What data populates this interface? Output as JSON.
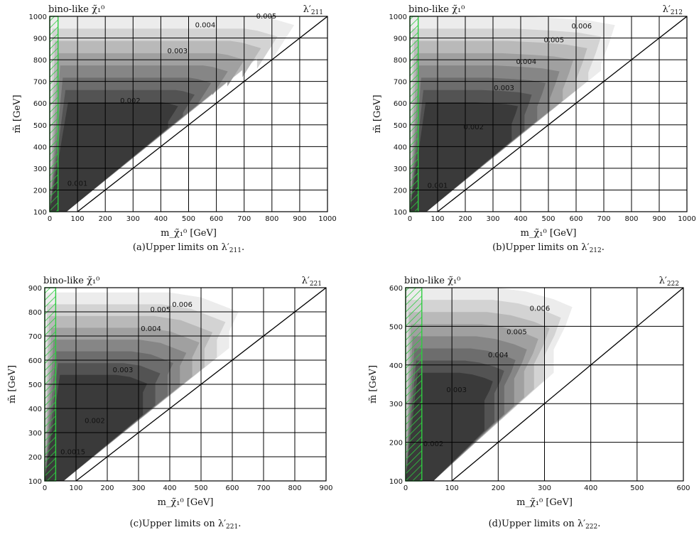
{
  "chart_data": [
    {
      "type": "heatmap",
      "panel": "(a)",
      "caption_prefix": "Upper limits on ",
      "caption_coupling": "λ′211",
      "corner_left": "bino-like χ̃₁⁰",
      "corner_right": "λ′211",
      "xlabel": "m_χ̃₁⁰ [GeV]",
      "ylabel": "m̃ [GeV]",
      "xlim": [
        0,
        1000
      ],
      "ylim": [
        100,
        1000
      ],
      "xticks": [
        0,
        100,
        200,
        300,
        400,
        500,
        600,
        700,
        800,
        900,
        1000
      ],
      "yticks": [
        100,
        200,
        300,
        400,
        500,
        600,
        700,
        800,
        900,
        1000
      ],
      "excluded_region_x_max": 30,
      "contour_labels": [
        {
          "text": "0.001",
          "x": 100,
          "y": 220
        },
        {
          "text": "0.002",
          "x": 290,
          "y": 600
        },
        {
          "text": "0.003",
          "x": 460,
          "y": 830
        },
        {
          "text": "0.004",
          "x": 560,
          "y": 950
        },
        {
          "text": "0.005",
          "x": 780,
          "y": 990
        }
      ],
      "envelope_top": [
        [
          0,
          1000
        ],
        [
          200,
          1000
        ],
        [
          400,
          1000
        ],
        [
          600,
          1000
        ],
        [
          750,
          1000
        ],
        [
          800,
          990
        ],
        [
          880,
          960
        ],
        [
          850,
          900
        ],
        [
          800,
          800
        ]
      ]
    },
    {
      "type": "heatmap",
      "panel": "(b)",
      "caption_prefix": "Upper limits on ",
      "caption_coupling": "λ′212",
      "corner_left": "bino-like χ̃₁⁰",
      "corner_right": "λ′212",
      "xlabel": "m_χ̃₁⁰ [GeV]",
      "ylabel": "m̃ [GeV]",
      "xlim": [
        0,
        1000
      ],
      "ylim": [
        100,
        1000
      ],
      "xticks": [
        0,
        100,
        200,
        300,
        400,
        500,
        600,
        700,
        800,
        900,
        1000
      ],
      "yticks": [
        100,
        200,
        300,
        400,
        500,
        600,
        700,
        800,
        900,
        1000
      ],
      "excluded_region_x_max": 30,
      "contour_labels": [
        {
          "text": "0.001",
          "x": 100,
          "y": 210
        },
        {
          "text": "0.002",
          "x": 230,
          "y": 480
        },
        {
          "text": "0.003",
          "x": 340,
          "y": 660
        },
        {
          "text": "0.004",
          "x": 420,
          "y": 780
        },
        {
          "text": "0.005",
          "x": 520,
          "y": 880
        },
        {
          "text": "0.006",
          "x": 620,
          "y": 945
        }
      ],
      "envelope_top": [
        [
          0,
          1000
        ],
        [
          200,
          1000
        ],
        [
          400,
          1000
        ],
        [
          550,
          990
        ],
        [
          650,
          980
        ],
        [
          740,
          960
        ],
        [
          720,
          880
        ],
        [
          690,
          780
        ]
      ]
    },
    {
      "type": "heatmap",
      "panel": "(c)",
      "caption_prefix": "Upper limits on ",
      "caption_coupling": "λ′221",
      "corner_left": "bino-like χ̃₁⁰",
      "corner_right": "λ′221",
      "xlabel": "m_χ̃₁⁰ [GeV]",
      "ylabel": "m̃ [GeV]",
      "xlim": [
        0,
        900
      ],
      "ylim": [
        100,
        900
      ],
      "xticks": [
        0,
        100,
        200,
        300,
        400,
        500,
        600,
        700,
        800,
        900
      ],
      "yticks": [
        100,
        200,
        300,
        400,
        500,
        600,
        700,
        800,
        900
      ],
      "excluded_region_x_max": 35,
      "contour_labels": [
        {
          "text": "0.0015",
          "x": 90,
          "y": 210
        },
        {
          "text": "0.002",
          "x": 160,
          "y": 340
        },
        {
          "text": "0.003",
          "x": 250,
          "y": 550
        },
        {
          "text": "0.004",
          "x": 340,
          "y": 720
        },
        {
          "text": "0.005",
          "x": 370,
          "y": 800
        },
        {
          "text": "0.006",
          "x": 440,
          "y": 820
        }
      ],
      "envelope_top": [
        [
          0,
          880
        ],
        [
          100,
          880
        ],
        [
          200,
          880
        ],
        [
          300,
          880
        ],
        [
          400,
          880
        ],
        [
          500,
          860
        ],
        [
          560,
          830
        ],
        [
          620,
          800
        ],
        [
          590,
          720
        ]
      ]
    },
    {
      "type": "heatmap",
      "panel": "(d)",
      "caption_prefix": "Upper limits on ",
      "caption_coupling": "λ′222",
      "corner_left": "bino-like χ̃₁⁰",
      "corner_right": "λ′222",
      "xlabel": "m_χ̃₁⁰ [GeV]",
      "ylabel": "m̃ [GeV]",
      "xlim": [
        0,
        600
      ],
      "ylim": [
        100,
        600
      ],
      "xticks": [
        0,
        100,
        200,
        300,
        400,
        500,
        600
      ],
      "yticks": [
        100,
        200,
        300,
        400,
        500,
        600
      ],
      "excluded_region_x_max": 35,
      "contour_labels": [
        {
          "text": "0.002",
          "x": 60,
          "y": 190
        },
        {
          "text": "0.003",
          "x": 110,
          "y": 330
        },
        {
          "text": "0.004",
          "x": 200,
          "y": 420
        },
        {
          "text": "0.005",
          "x": 240,
          "y": 480
        },
        {
          "text": "0.006",
          "x": 290,
          "y": 540
        }
      ],
      "envelope_top": [
        [
          0,
          600
        ],
        [
          100,
          600
        ],
        [
          200,
          600
        ],
        [
          260,
          590
        ],
        [
          320,
          570
        ],
        [
          360,
          550
        ],
        [
          345,
          500
        ],
        [
          320,
          440
        ]
      ]
    }
  ],
  "colors": {
    "exclusion_hatch": "#2ecc40",
    "grid": "#000000",
    "shade_darkest": "#3a3a3a",
    "shade_lightest": "#ececec"
  }
}
